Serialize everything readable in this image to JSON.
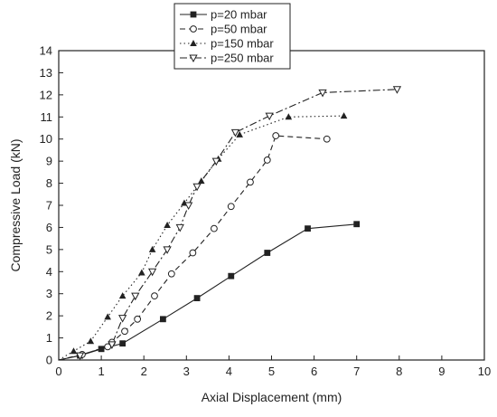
{
  "chart_data": {
    "type": "line",
    "xlabel": "Axial Displacement (mm)",
    "ylabel": "Compressive Load (kN)",
    "xlim": [
      0,
      10
    ],
    "ylim": [
      0,
      14
    ],
    "x_ticks": [
      0,
      1,
      2,
      3,
      4,
      5,
      6,
      7,
      8,
      9,
      10
    ],
    "y_ticks": [
      0,
      1,
      2,
      3,
      4,
      5,
      6,
      7,
      8,
      9,
      10,
      11,
      12,
      13,
      14
    ],
    "grid": false,
    "legend_position": "top-left",
    "series": [
      {
        "name": "p=20 mbar",
        "style": "solid",
        "marker": "filled-square",
        "color": "#222222",
        "points": [
          [
            0,
            0
          ],
          [
            0.5,
            0.2
          ],
          [
            1.0,
            0.5
          ],
          [
            1.5,
            0.75
          ],
          [
            2.45,
            1.85
          ],
          [
            3.25,
            2.8
          ],
          [
            4.05,
            3.8
          ],
          [
            4.9,
            4.85
          ],
          [
            5.85,
            5.95
          ],
          [
            7.0,
            6.15
          ]
        ]
      },
      {
        "name": "p=50 mbar",
        "style": "dashed",
        "marker": "open-circle",
        "color": "#222222",
        "points": [
          [
            0,
            0
          ],
          [
            0.55,
            0.25
          ],
          [
            1.15,
            0.6
          ],
          [
            1.25,
            0.8
          ],
          [
            1.55,
            1.3
          ],
          [
            1.85,
            1.85
          ],
          [
            2.25,
            2.9
          ],
          [
            2.65,
            3.9
          ],
          [
            3.15,
            4.85
          ],
          [
            3.65,
            5.95
          ],
          [
            4.05,
            6.95
          ],
          [
            4.5,
            8.05
          ],
          [
            4.9,
            9.05
          ],
          [
            5.1,
            10.15
          ],
          [
            6.3,
            10.0
          ]
        ]
      },
      {
        "name": "p=150 mbar",
        "style": "dotted",
        "marker": "filled-triangle",
        "color": "#222222",
        "points": [
          [
            0,
            0
          ],
          [
            0.35,
            0.4
          ],
          [
            0.75,
            0.85
          ],
          [
            1.15,
            1.95
          ],
          [
            1.5,
            2.9
          ],
          [
            1.95,
            3.95
          ],
          [
            2.2,
            5.0
          ],
          [
            2.55,
            6.1
          ],
          [
            2.95,
            7.1
          ],
          [
            3.35,
            8.1
          ],
          [
            3.75,
            9.1
          ],
          [
            4.25,
            10.2
          ],
          [
            5.4,
            11.0
          ],
          [
            6.7,
            11.05
          ]
        ]
      },
      {
        "name": "p=250 mbar",
        "style": "dashdot",
        "marker": "open-triangle-down",
        "color": "#222222",
        "points": [
          [
            0,
            0
          ],
          [
            0.5,
            0.2
          ],
          [
            1.25,
            0.7
          ],
          [
            1.5,
            1.9
          ],
          [
            1.8,
            2.9
          ],
          [
            2.2,
            4.0
          ],
          [
            2.55,
            5.0
          ],
          [
            2.85,
            6.0
          ],
          [
            3.05,
            7.0
          ],
          [
            3.25,
            7.85
          ],
          [
            3.7,
            9.0
          ],
          [
            4.15,
            10.3
          ],
          [
            4.95,
            11.05
          ],
          [
            6.2,
            12.1
          ],
          [
            7.95,
            12.25
          ]
        ]
      }
    ]
  }
}
